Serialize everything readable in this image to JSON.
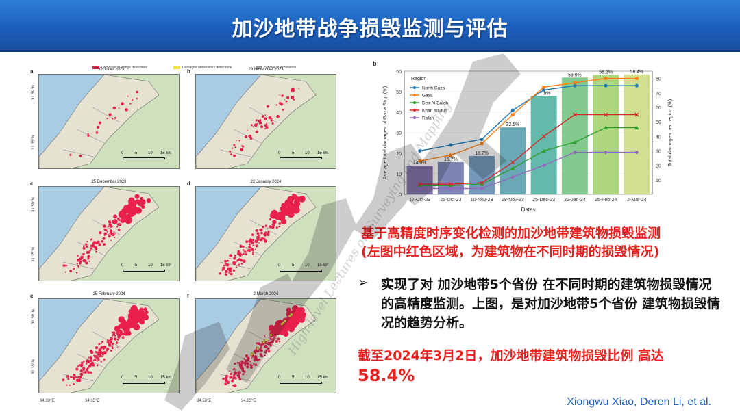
{
  "header": {
    "title": "加沙地带战争损毁监测与评估"
  },
  "figure_a": {
    "legend": [
      {
        "label": "Damaged buildings detections",
        "color": "#e8204b"
      },
      {
        "label": "Damaged universities detections",
        "color": "#f0e23a"
      },
      {
        "label": "Smoke of expolsions",
        "color": "#9a9a9a"
      }
    ],
    "panels": [
      {
        "letter": "a",
        "date": "17 October 2023"
      },
      {
        "letter": "b",
        "date": "29 November 2023"
      },
      {
        "letter": "c",
        "date": "25 December 2023"
      },
      {
        "letter": "d",
        "date": "22 January 2024"
      },
      {
        "letter": "e",
        "date": "25 February 2024"
      },
      {
        "letter": "f",
        "date": "2 March 2024"
      }
    ],
    "lat_labels": [
      "31.50°N",
      "31.35°N"
    ],
    "lon_labels": [
      "34.20°E",
      "34.35°E",
      "34.50°E",
      "34.65°E"
    ],
    "scale_labels": [
      "0",
      "5",
      "10",
      "15 km"
    ],
    "colors": {
      "water": "#a9cce3",
      "land": "#cfe0bf",
      "damage": "#e8204b",
      "university": "#f0e23a"
    }
  },
  "chart_data": {
    "type": "bar+line",
    "panel_letter": "b",
    "categories": [
      "17-Oct-23",
      "25-Oct-23",
      "10-Nov-23",
      "29-Nov-23",
      "25-Dec-23",
      "22-Jan-24",
      "25-Feb-24",
      "2-Mar-24"
    ],
    "bars": {
      "values": [
        14.0,
        15.7,
        18.7,
        32.6,
        47.9,
        56.9,
        58.2,
        58.4
      ],
      "labels": [
        "14.0%",
        "15.7%",
        "18.7%",
        "32.6%",
        "47.9%",
        "56.9%",
        "58.2%",
        "58.4%"
      ],
      "colors": [
        "#6c5a9e",
        "#6570a8",
        "#5a86ad",
        "#4f9aa9",
        "#49ae9b",
        "#6ec07d",
        "#a0d06a",
        "#c9dc7e"
      ]
    },
    "series": [
      {
        "name": "North Gaza",
        "color": "#1f77b4",
        "marker": "o",
        "values": [
          30,
          34,
          38,
          58,
          72,
          75,
          75,
          75
        ]
      },
      {
        "name": "Gaza",
        "color": "#ff7f0e",
        "marker": "s",
        "values": [
          23,
          27,
          35,
          55,
          74,
          77,
          80,
          80
        ]
      },
      {
        "name": "Deir Al-Balah",
        "color": "#2ca02c",
        "marker": "^",
        "values": [
          6,
          6,
          7,
          18,
          30,
          36,
          46,
          46
        ]
      },
      {
        "name": "Khan Younis",
        "color": "#d62728",
        "marker": "x",
        "values": [
          7,
          7,
          8,
          22,
          40,
          55,
          55,
          55
        ]
      },
      {
        "name": "Rafah",
        "color": "#9467bd",
        "marker": "D",
        "values": [
          4,
          4,
          4,
          12,
          20,
          29,
          29,
          29
        ]
      }
    ],
    "legend_title": "Region",
    "legend_position": "top-left",
    "xlabel": "Dates",
    "ylabel": "Average total damages of Gaza Strip (%)",
    "y2label": "Total damages per region (%)",
    "ylim": [
      0,
      60
    ],
    "y2lim": [
      0,
      85
    ],
    "yticks": [
      0,
      10,
      20,
      30,
      40,
      50,
      60
    ],
    "y2ticks": [
      10,
      20,
      30,
      40,
      50,
      60,
      70,
      80
    ]
  },
  "text": {
    "red_line_1": "基于高精度时序变化检测的加沙地带建筑物损毁监测",
    "red_line_2": "(左图中红色区域，为建筑物在不同时期的损毁情况)",
    "bullet_arrow": "➢",
    "bullet": "实现了对 加沙地带5个省份 在不同时期的建筑物损毁情况 的高精度监测。上图，是对加沙地带5个省份 建筑物损毁情况的趋势分析。",
    "bottom_red_1": "截至2024年3月2日，加沙地带建筑物损毁比例 高达",
    "bottom_red_2": "58.4%",
    "credit": "Xiongwu Xiao, Deren Li, et al."
  }
}
